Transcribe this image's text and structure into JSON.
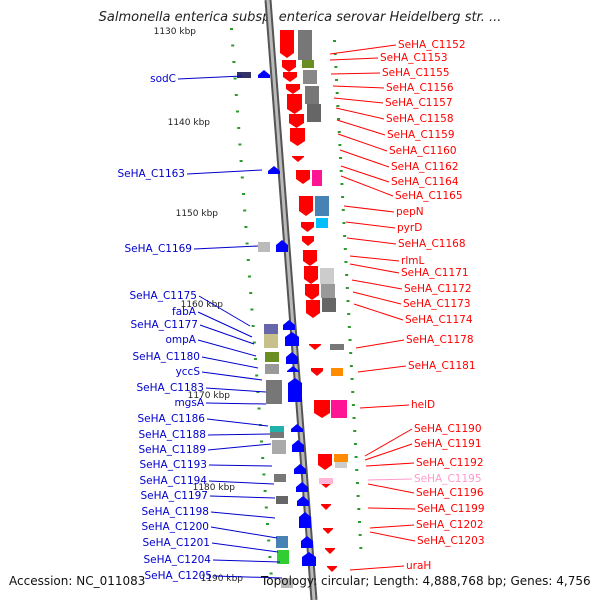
{
  "title": "Salmonella enterica subsp. enterica serovar Heidelberg str. ...",
  "footer": {
    "accession": "Accession: NC_011083",
    "topology": "Topology: circular; Length: 4,888,768 bp; Genes: 4,756"
  },
  "colors": {
    "forward_label": "#0000cc",
    "reverse_label": "#ff0000",
    "faded_label": "#ff99cc",
    "backbone": "#777777",
    "tick": "#2e9a2e"
  },
  "ruler": [
    "1130 kbp",
    "1140 kbp",
    "1150 kbp",
    "1160 kbp",
    "1170 kbp",
    "1180 kbp",
    "1190 kbp"
  ],
  "left_genes": [
    "sodC",
    "SeHA_C1163",
    "SeHA_C1169",
    "SeHA_C1175",
    "fabA",
    "SeHA_C1177",
    "ompA",
    "SeHA_C1180",
    "yccS",
    "SeHA_C1183",
    "mgsA",
    "SeHA_C1186",
    "SeHA_C1188",
    "SeHA_C1189",
    "SeHA_C1193",
    "SeHA_C1194",
    "SeHA_C1197",
    "SeHA_C1198",
    "SeHA_C1200",
    "SeHA_C1201",
    "SeHA_C1204",
    "SeHA_C1205"
  ],
  "right_genes": [
    "SeHA_C1152",
    "SeHA_C1153",
    "SeHA_C1155",
    "SeHA_C1156",
    "SeHA_C1157",
    "SeHA_C1158",
    "SeHA_C1159",
    "SeHA_C1160",
    "SeHA_C1162",
    "SeHA_C1164",
    "SeHA_C1165",
    "pepN",
    "pyrD",
    "SeHA_C1168",
    "rlmL",
    "SeHA_C1171",
    "SeHA_C1172",
    "SeHA_C1173",
    "SeHA_C1174",
    "SeHA_C1178",
    "SeHA_C1181",
    "helD",
    "SeHA_C1190",
    "SeHA_C1191",
    "SeHA_C1192",
    "SeHA_C1195",
    "SeHA_C1196",
    "SeHA_C1199",
    "SeHA_C1202",
    "SeHA_C1203",
    "uraH"
  ]
}
